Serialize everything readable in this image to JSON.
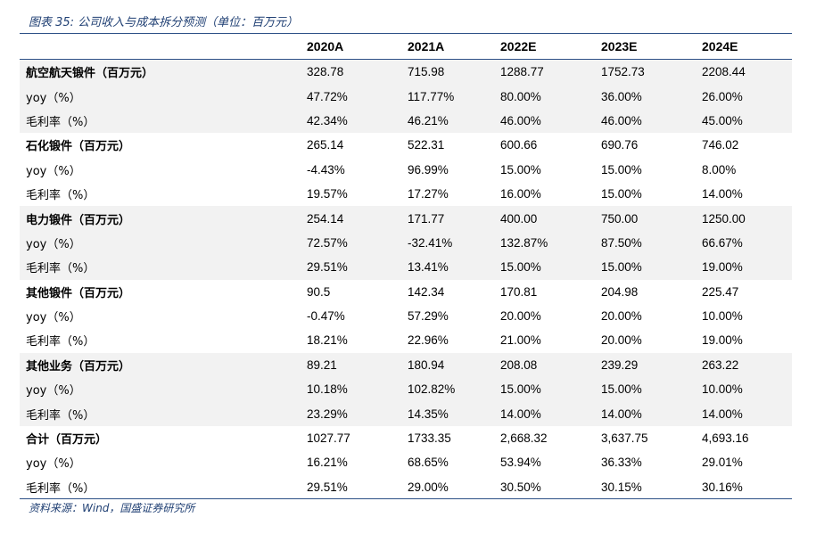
{
  "caption": "图表 35: 公司收入与成本拆分预测（单位：百万元）",
  "source": "资料来源：Wind，国盛证券研究所",
  "header": [
    "",
    "2020A",
    "2021A",
    "2022E",
    "2023E",
    "2024E"
  ],
  "rows": [
    {
      "label": "航空航天锻件（百万元）",
      "values": [
        "328.78",
        "715.98",
        "1288.77",
        "1752.73",
        "2208.44"
      ]
    },
    {
      "label": "yoy（%）",
      "values": [
        "47.72%",
        "117.77%",
        "80.00%",
        "36.00%",
        "26.00%"
      ]
    },
    {
      "label": "毛利率（%）",
      "values": [
        "42.34%",
        "46.21%",
        "46.00%",
        "46.00%",
        "45.00%"
      ]
    },
    {
      "label": "石化锻件（百万元）",
      "values": [
        "265.14",
        "522.31",
        "600.66",
        "690.76",
        "746.02"
      ]
    },
    {
      "label": "yoy（%）",
      "values": [
        "-4.43%",
        "96.99%",
        "15.00%",
        "15.00%",
        "8.00%"
      ]
    },
    {
      "label": "毛利率（%）",
      "values": [
        "19.57%",
        "17.27%",
        "16.00%",
        "15.00%",
        "14.00%"
      ]
    },
    {
      "label": "电力锻件（百万元）",
      "values": [
        "254.14",
        "171.77",
        "400.00",
        "750.00",
        "1250.00"
      ]
    },
    {
      "label": "yoy（%）",
      "values": [
        "72.57%",
        "-32.41%",
        "132.87%",
        "87.50%",
        "66.67%"
      ]
    },
    {
      "label": "毛利率（%）",
      "values": [
        "29.51%",
        "13.41%",
        "15.00%",
        "15.00%",
        "19.00%"
      ]
    },
    {
      "label": "其他锻件（百万元）",
      "values": [
        "90.5",
        "142.34",
        "170.81",
        "204.98",
        "225.47"
      ]
    },
    {
      "label": "yoy（%）",
      "values": [
        "-0.47%",
        "57.29%",
        "20.00%",
        "20.00%",
        "10.00%"
      ]
    },
    {
      "label": "毛利率（%）",
      "values": [
        "18.21%",
        "22.96%",
        "21.00%",
        "20.00%",
        "19.00%"
      ]
    },
    {
      "label": "其他业务（百万元）",
      "values": [
        "89.21",
        "180.94",
        "208.08",
        "239.29",
        "263.22"
      ]
    },
    {
      "label": "yoy（%）",
      "values": [
        "10.18%",
        "102.82%",
        "15.00%",
        "15.00%",
        "10.00%"
      ]
    },
    {
      "label": "毛利率（%）",
      "values": [
        "23.29%",
        "14.35%",
        "14.00%",
        "14.00%",
        "14.00%"
      ]
    },
    {
      "label": "合计（百万元）",
      "values": [
        "1027.77",
        "1733.35",
        "2,668.32",
        "3,637.75",
        "4,693.16"
      ]
    },
    {
      "label": "yoy（%）",
      "values": [
        "16.21%",
        "68.65%",
        "53.94%",
        "36.33%",
        "29.01%"
      ]
    },
    {
      "label": "毛利率（%）",
      "values": [
        "29.51%",
        "29.00%",
        "30.50%",
        "30.15%",
        "30.16%"
      ]
    }
  ],
  "colors": {
    "rule": "#2c4f86",
    "caption": "#1f3f73",
    "shade": "#f2f2f2"
  }
}
